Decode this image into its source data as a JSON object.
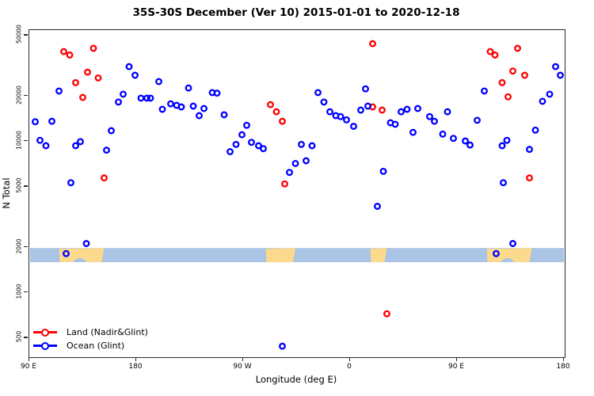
{
  "title": "35S-30S December (Ver 10)   2015-01-01 to 2020-12-18",
  "chart_data": {
    "type": "scatter",
    "title": "35S-30S December (Ver 10)   2015-01-01 to 2020-12-18",
    "xlabel": "Longitude (deg E)",
    "ylabel": "N Total",
    "x_axis": {
      "description": "longitude plotted continuously from 90E eastward through 180, 90W, 0, 90E to 180 (wrap)",
      "range": [
        90,
        540
      ],
      "ticks": [
        {
          "pos": 90,
          "label": "90 E"
        },
        {
          "pos": 180,
          "label": "180"
        },
        {
          "pos": 270,
          "label": "90 W"
        },
        {
          "pos": 360,
          "label": "0"
        },
        {
          "pos": 450,
          "label": "90 E"
        },
        {
          "pos": 540,
          "label": "180"
        }
      ]
    },
    "y_axis": {
      "scale": "log10",
      "range": [
        400,
        55000
      ],
      "ticks": [
        {
          "v": 500,
          "label": "500"
        },
        {
          "v": 1000,
          "label": "1000"
        },
        {
          "v": 2000,
          "label": "2000"
        },
        {
          "v": 5000,
          "label": "5000"
        },
        {
          "v": 10000,
          "label": "10000"
        },
        {
          "v": 20000,
          "label": "20000"
        },
        {
          "v": 50000,
          "label": "50000"
        }
      ]
    },
    "legend_position": "bottom-left",
    "marker": "open-circle",
    "series": [
      {
        "name": "Land (Nadir&Glint)",
        "color": "#ff0000",
        "points": [
          [
            119,
            39000
          ],
          [
            124,
            37000
          ],
          [
            144,
            41000
          ],
          [
            139,
            28500
          ],
          [
            148,
            26100
          ],
          [
            129,
            24300
          ],
          [
            135,
            19400
          ],
          [
            153,
            5700
          ],
          [
            293,
            17400
          ],
          [
            298,
            15600
          ],
          [
            303,
            13500
          ],
          [
            305,
            5200
          ],
          [
            379,
            44000
          ],
          [
            379,
            16800
          ],
          [
            387,
            16000
          ],
          [
            391,
            720
          ],
          [
            478,
            39000
          ],
          [
            482,
            37000
          ],
          [
            501,
            41000
          ],
          [
            497,
            29000
          ],
          [
            507,
            27200
          ],
          [
            488,
            24300
          ],
          [
            493,
            19600
          ],
          [
            511,
            5700
          ]
        ]
      },
      {
        "name": "Ocean (Glint)",
        "color": "#0000ff",
        "points": [
          [
            115,
            21400
          ],
          [
            174,
            31000
          ],
          [
            179,
            27200
          ],
          [
            199,
            24700
          ],
          [
            169,
            20400
          ],
          [
            165,
            18100
          ],
          [
            184,
            19200
          ],
          [
            189,
            19200
          ],
          [
            192,
            19200
          ],
          [
            202,
            16200
          ],
          [
            95,
            13400
          ],
          [
            109,
            13500
          ],
          [
            99,
            10100
          ],
          [
            104,
            9300
          ],
          [
            129,
            9300
          ],
          [
            133,
            9900
          ],
          [
            159,
            11700
          ],
          [
            155,
            8700
          ],
          [
            125,
            5300
          ],
          [
            121,
            1800
          ],
          [
            138,
            2100
          ],
          [
            224,
            22400
          ],
          [
            244,
            20900
          ],
          [
            248,
            20700
          ],
          [
            209,
            17600
          ],
          [
            214,
            17200
          ],
          [
            218,
            16800
          ],
          [
            228,
            17000
          ],
          [
            237,
            16400
          ],
          [
            233,
            14700
          ],
          [
            254,
            14900
          ],
          [
            273,
            12700
          ],
          [
            269,
            11000
          ],
          [
            264,
            9500
          ],
          [
            259,
            8500
          ],
          [
            277,
            9800
          ],
          [
            283,
            9300
          ],
          [
            287,
            8900
          ],
          [
            314,
            7100
          ],
          [
            309,
            6200
          ],
          [
            319,
            9500
          ],
          [
            328,
            9300
          ],
          [
            323,
            7400
          ],
          [
            333,
            20900
          ],
          [
            338,
            18100
          ],
          [
            343,
            15600
          ],
          [
            348,
            14700
          ],
          [
            352,
            14500
          ],
          [
            357,
            13800
          ],
          [
            363,
            12500
          ],
          [
            373,
            22100
          ],
          [
            369,
            16000
          ],
          [
            375,
            17000
          ],
          [
            394,
            13200
          ],
          [
            398,
            12900
          ],
          [
            403,
            15600
          ],
          [
            408,
            16200
          ],
          [
            417,
            16400
          ],
          [
            413,
            11400
          ],
          [
            388,
            6300
          ],
          [
            383,
            3700
          ],
          [
            303,
            440
          ],
          [
            427,
            14500
          ],
          [
            431,
            13500
          ],
          [
            442,
            15600
          ],
          [
            438,
            11100
          ],
          [
            447,
            10400
          ],
          [
            457,
            10000
          ],
          [
            461,
            9400
          ],
          [
            467,
            13700
          ],
          [
            473,
            21400
          ],
          [
            488,
            9300
          ],
          [
            492,
            10100
          ],
          [
            497,
            2100
          ],
          [
            483,
            1800
          ],
          [
            489,
            5300
          ],
          [
            511,
            8800
          ],
          [
            516,
            11800
          ],
          [
            522,
            18300
          ],
          [
            528,
            20400
          ],
          [
            533,
            31000
          ],
          [
            537,
            27200
          ]
        ]
      }
    ],
    "map_band": {
      "description": "land/ocean strip map of the 35S-30S latitude band drawn across the plot",
      "ocean_color": "#a9c4e4",
      "land_color": "#fbd98d",
      "n_top": 1960,
      "n_bottom": 1580,
      "land_patches": [
        {
          "name": "australia",
          "lon": [
            115,
            153
          ],
          "notch_lon": [
            127,
            138
          ]
        },
        {
          "name": "south-america",
          "lon": [
            289,
            314
          ]
        },
        {
          "name": "southern-africa",
          "lon": [
            377,
            391
          ]
        },
        {
          "name": "australia-repeat",
          "lon": [
            475,
            513
          ],
          "notch_lon": [
            487,
            498
          ]
        }
      ]
    }
  }
}
